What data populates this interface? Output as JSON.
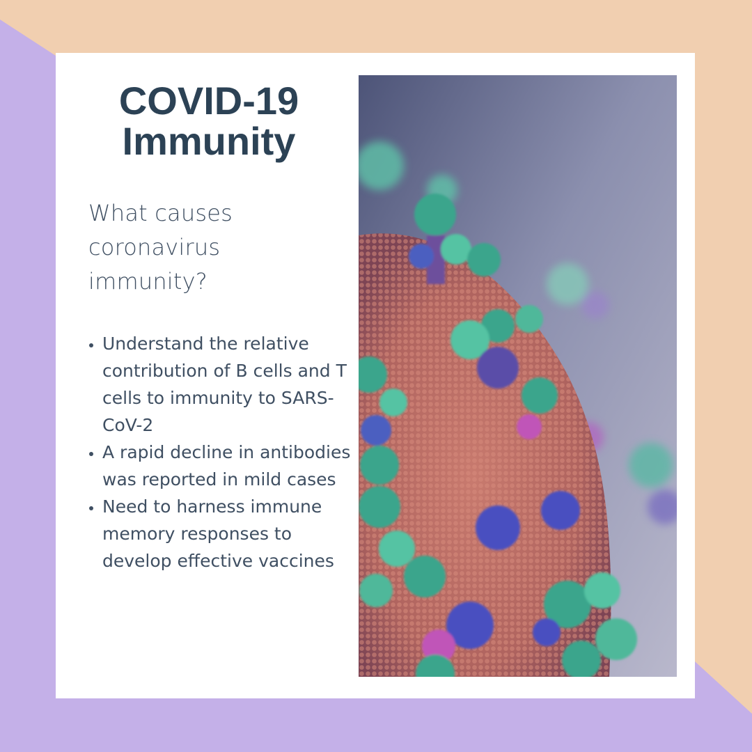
{
  "title": {
    "line1": "COVID-19",
    "line2": "Immunity"
  },
  "question": "What causes coronavirus immunity?",
  "bullets": [
    "Understand the relative contribution of B cells and T cells to immunity to SARS-CoV-2",
    "A rapid decline in antibodies was reported in mild cases",
    "Need to harness immune memory responses to develop effective vaccines"
  ],
  "colors": {
    "background_peach": "#f1cfb0",
    "background_lavender": "#c4b0e8",
    "card": "#ffffff",
    "title": "#2c4255",
    "body_text": "#3f4f62",
    "virus_body": "#b86a62",
    "spike_teal": "#4fb89a",
    "spike_blue": "#4a4fc0"
  },
  "image": {
    "subject": "coronavirus-3d-render"
  }
}
